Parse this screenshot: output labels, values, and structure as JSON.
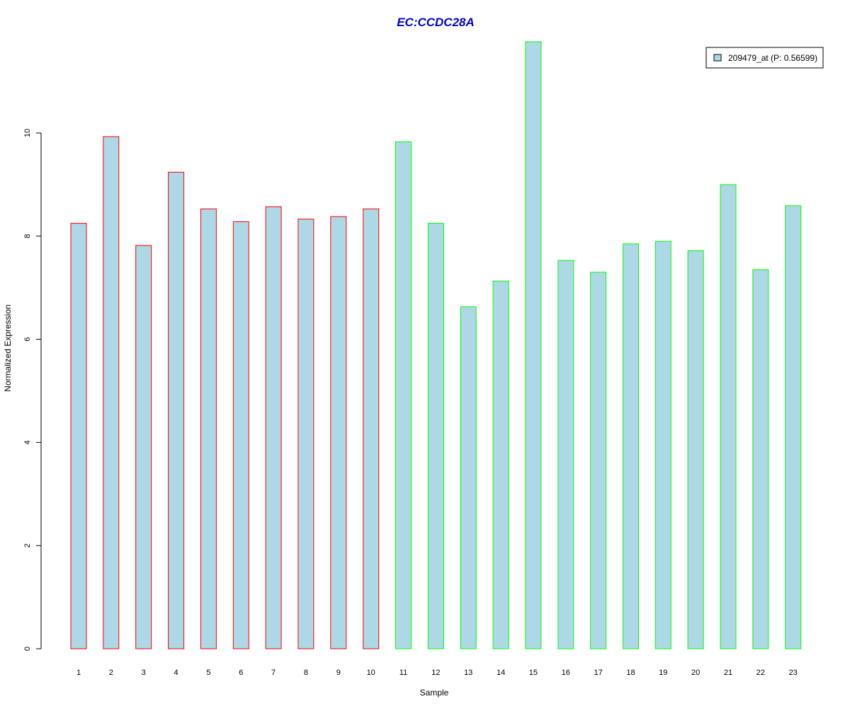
{
  "chart_data": {
    "type": "bar",
    "title": "EC:CCDC28A",
    "xlabel": "Sample",
    "ylabel": "Normalized Expression",
    "categories": [
      "1",
      "2",
      "3",
      "4",
      "5",
      "6",
      "7",
      "8",
      "9",
      "10",
      "11",
      "12",
      "13",
      "14",
      "15",
      "16",
      "17",
      "18",
      "19",
      "20",
      "21",
      "22",
      "23"
    ],
    "series": [
      {
        "name": "209479_at (P: 0.56599)",
        "values": [
          8.25,
          9.93,
          7.82,
          9.24,
          8.53,
          8.28,
          8.57,
          8.33,
          8.38,
          8.53,
          9.83,
          8.25,
          6.63,
          7.13,
          11.77,
          7.53,
          7.3,
          7.85,
          7.9,
          7.72,
          9.0,
          7.35,
          8.59
        ]
      }
    ],
    "bar_groups": [
      "group1",
      "group1",
      "group1",
      "group1",
      "group1",
      "group1",
      "group1",
      "group1",
      "group1",
      "group1",
      "group2",
      "group2",
      "group2",
      "group2",
      "group2",
      "group2",
      "group2",
      "group2",
      "group2",
      "group2",
      "group2",
      "group2",
      "group2"
    ],
    "ylim": [
      0,
      12
    ],
    "yticks": [
      "0",
      "2",
      "4",
      "6",
      "8",
      "10"
    ],
    "grid": false,
    "legend_position": "top-right",
    "colors": {
      "title": "#0000cc",
      "bar_fill": "#add8e6",
      "group1_border": "#ff0000",
      "group2_border": "#00ff00",
      "axis": "#000000"
    }
  }
}
